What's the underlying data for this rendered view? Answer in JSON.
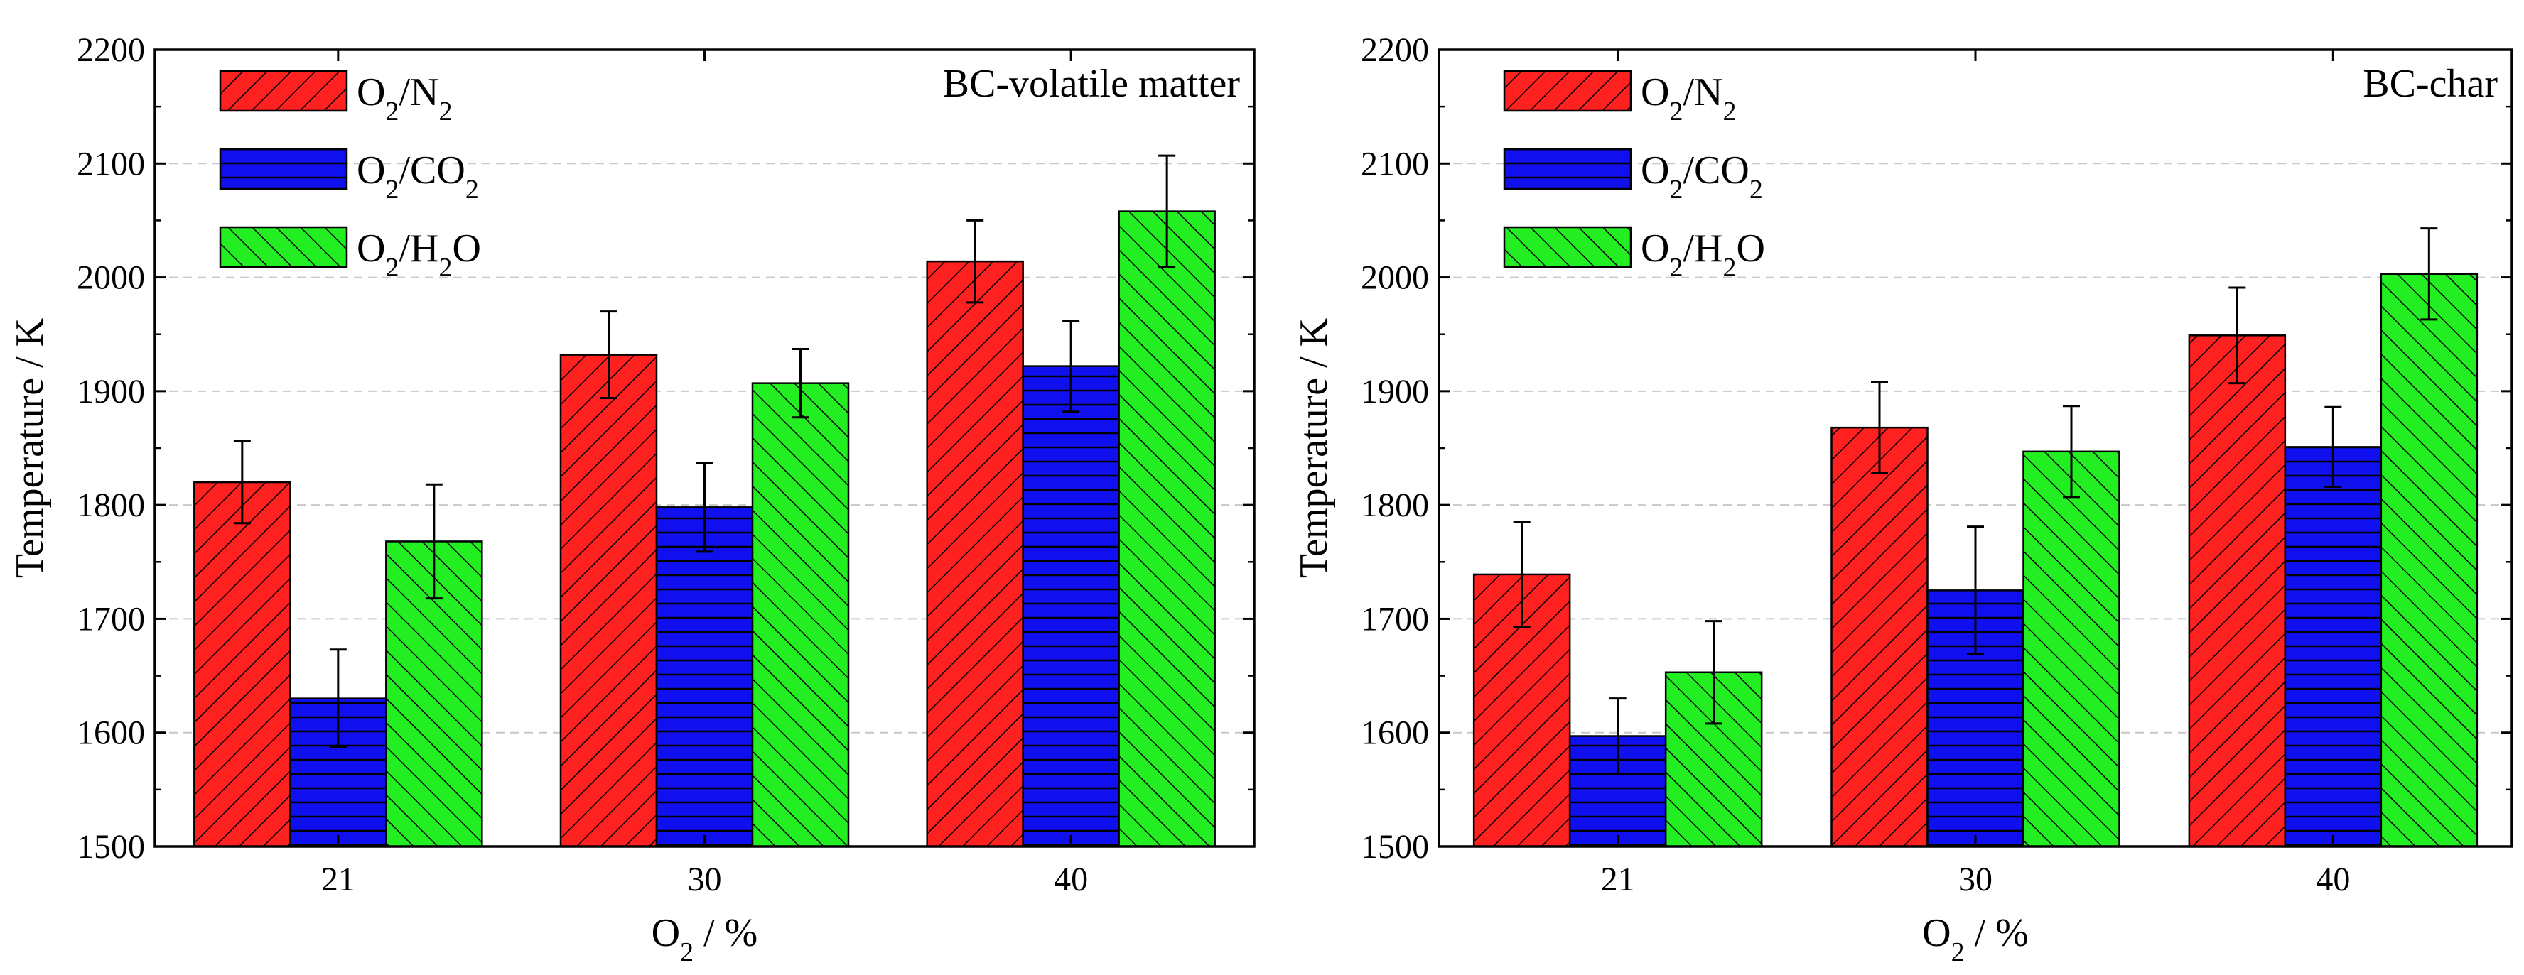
{
  "figure": {
    "xlabel_main": "O",
    "xlabel_sub": "2",
    "xlabel_rest": " / %"
  },
  "legend": [
    {
      "main": "O",
      "sub1": "2",
      "mid": "/N",
      "sub2": "2",
      "tail": "",
      "sub3": ""
    },
    {
      "main": "O",
      "sub1": "2",
      "mid": "/CO",
      "sub2": "2",
      "tail": "",
      "sub3": ""
    },
    {
      "main": "O",
      "sub1": "2",
      "mid": "/H",
      "sub2": "2",
      "tail": "O",
      "sub3": ""
    }
  ],
  "colors": {
    "O2/N2": "#ff2020",
    "O2/CO2": "#1010ee",
    "O2/H2O": "#22ee22",
    "grid": "#c8c8c8"
  },
  "chart_data": [
    {
      "type": "bar",
      "title": "BC-volatile matter",
      "xlabel": "O2 / %",
      "ylabel": "Temperature / K",
      "categories": [
        "21",
        "30",
        "40"
      ],
      "ylim": [
        1500,
        2200
      ],
      "yticks": [
        1500,
        1600,
        1700,
        1800,
        1900,
        2000,
        2100,
        2200
      ],
      "grid": true,
      "legend_position": "top-left",
      "series": [
        {
          "name": "O2/N2",
          "values": [
            1820,
            1932,
            2014
          ],
          "errors": [
            36,
            38,
            36
          ],
          "pattern": "diag-forward"
        },
        {
          "name": "O2/CO2",
          "values": [
            1630,
            1798,
            1922
          ],
          "errors": [
            43,
            39,
            40
          ],
          "pattern": "horizontal"
        },
        {
          "name": "O2/H2O",
          "values": [
            1768,
            1907,
            2058
          ],
          "errors": [
            50,
            30,
            49
          ],
          "pattern": "diag-back"
        }
      ]
    },
    {
      "type": "bar",
      "title": "BC-char",
      "xlabel": "O2 / %",
      "ylabel": "Temperature / K",
      "categories": [
        "21",
        "30",
        "40"
      ],
      "ylim": [
        1500,
        2200
      ],
      "yticks": [
        1500,
        1600,
        1700,
        1800,
        1900,
        2000,
        2100,
        2200
      ],
      "grid": true,
      "legend_position": "top-left",
      "series": [
        {
          "name": "O2/N2",
          "values": [
            1739,
            1868,
            1949
          ],
          "errors": [
            46,
            40,
            42
          ],
          "pattern": "diag-forward"
        },
        {
          "name": "O2/CO2",
          "values": [
            1597,
            1725,
            1851
          ],
          "errors": [
            33,
            56,
            35
          ],
          "pattern": "horizontal"
        },
        {
          "name": "O2/H2O",
          "values": [
            1653,
            1847,
            2003
          ],
          "errors": [
            45,
            40,
            40
          ],
          "pattern": "diag-back"
        }
      ]
    }
  ]
}
